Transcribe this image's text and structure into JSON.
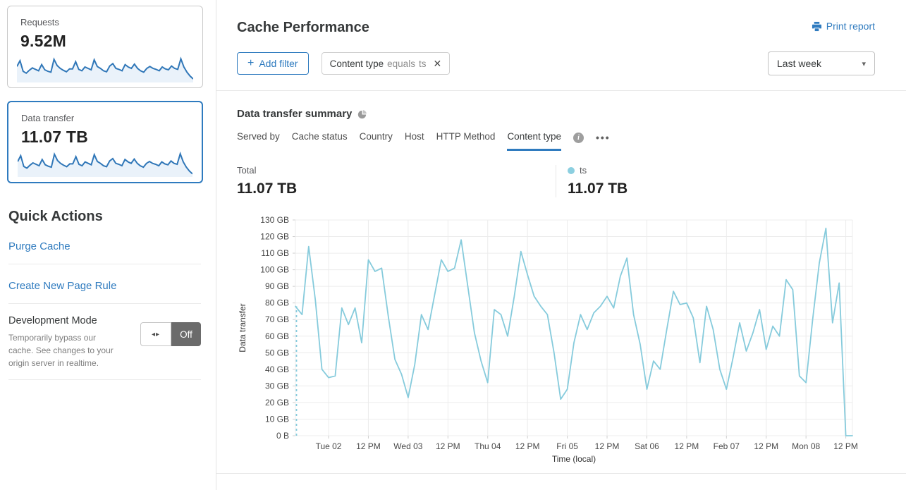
{
  "sidebar": {
    "cards": [
      {
        "label": "Requests",
        "value": "9.52M"
      },
      {
        "label": "Data transfer",
        "value": "11.07 TB",
        "selected": true
      }
    ],
    "sparklines": {
      "requests": [
        58,
        82,
        38,
        30,
        42,
        52,
        46,
        40,
        66,
        44,
        38,
        34,
        88,
        62,
        50,
        42,
        36,
        48,
        48,
        78,
        46,
        40,
        56,
        50,
        44,
        86,
        58,
        50,
        40,
        36,
        60,
        70,
        50,
        46,
        40,
        66,
        56,
        50,
        68,
        50,
        40,
        34,
        50,
        58,
        50,
        46,
        40,
        56,
        48,
        44,
        60,
        50,
        46,
        90,
        56,
        34,
        18,
        6
      ],
      "data_transfer": [
        55,
        80,
        35,
        28,
        40,
        50,
        44,
        38,
        64,
        42,
        36,
        32,
        86,
        60,
        48,
        40,
        34,
        46,
        46,
        76,
        44,
        38,
        54,
        48,
        42,
        84,
        56,
        48,
        38,
        34,
        58,
        68,
        48,
        44,
        38,
        64,
        54,
        48,
        66,
        48,
        38,
        32,
        48,
        56,
        48,
        44,
        38,
        54,
        46,
        42,
        58,
        48,
        44,
        88,
        54,
        32,
        16,
        4
      ]
    },
    "spark_colors": {
      "line": "#3077b8",
      "fill": "#eaf2fa"
    },
    "quick_actions": {
      "title": "Quick Actions",
      "links": [
        "Purge Cache",
        "Create New Page Rule"
      ],
      "dev_mode": {
        "title": "Development Mode",
        "description": "Temporarily bypass our cache. See changes to your origin server in realtime.",
        "toggle_state": "Off"
      }
    }
  },
  "header": {
    "title": "Cache Performance",
    "print_report": "Print report",
    "add_filter": "Add filter",
    "filter_chip": {
      "field": "Content type",
      "operator": "equals",
      "value": "ts"
    },
    "time_range": "Last week"
  },
  "summary": {
    "title": "Data transfer summary",
    "tabs": [
      "Served by",
      "Cache status",
      "Country",
      "Host",
      "HTTP Method",
      "Content type"
    ],
    "active_tab": "Content type",
    "total_label": "Total",
    "total_value": "11.07 TB",
    "legend": {
      "name": "ts",
      "value": "11.07 TB",
      "color": "#8ccfe0"
    }
  },
  "chart_data": {
    "type": "line",
    "title": "Data transfer summary",
    "xlabel": "Time (local)",
    "ylabel": "Data transfer",
    "unit": "GB",
    "ylim": [
      0,
      130
    ],
    "ytick_step": 10,
    "ytick_labels": [
      "0 B",
      "10 GB",
      "20 GB",
      "30 GB",
      "40 GB",
      "50 GB",
      "60 GB",
      "70 GB",
      "80 GB",
      "90 GB",
      "100 GB",
      "110 GB",
      "120 GB",
      "130 GB"
    ],
    "grid": true,
    "line_color": "#86cbdc",
    "dashed_start": true,
    "series": [
      {
        "name": "ts",
        "values": [
          78,
          73,
          114,
          82,
          40,
          35,
          36,
          77,
          67,
          77,
          56,
          106,
          99,
          101,
          72,
          46,
          37,
          23,
          43,
          73,
          64,
          85,
          106,
          99,
          101,
          118,
          90,
          62,
          45,
          32,
          76,
          73,
          60,
          84,
          111,
          97,
          84,
          78,
          73,
          50,
          22,
          28,
          56,
          73,
          64,
          74,
          78,
          84,
          77,
          96,
          107,
          73,
          55,
          28,
          45,
          40,
          64,
          87,
          79,
          80,
          71,
          44,
          78,
          64,
          40,
          28,
          47,
          68,
          51,
          62,
          76,
          52,
          66,
          60,
          94,
          88,
          36,
          32,
          70,
          104,
          125,
          68,
          92,
          0,
          0
        ]
      }
    ],
    "xticks": [
      {
        "index": 5,
        "label": "Tue 02"
      },
      {
        "index": 11,
        "label": "12 PM"
      },
      {
        "index": 17,
        "label": "Wed 03"
      },
      {
        "index": 23,
        "label": "12 PM"
      },
      {
        "index": 29,
        "label": "Thu 04"
      },
      {
        "index": 35,
        "label": "12 PM"
      },
      {
        "index": 41,
        "label": "Fri 05"
      },
      {
        "index": 47,
        "label": "12 PM"
      },
      {
        "index": 53,
        "label": "Sat 06"
      },
      {
        "index": 59,
        "label": "12 PM"
      },
      {
        "index": 65,
        "label": "Feb 07"
      },
      {
        "index": 71,
        "label": "12 PM"
      },
      {
        "index": 77,
        "label": "Mon 08"
      },
      {
        "index": 83,
        "label": "12 PM"
      }
    ]
  }
}
